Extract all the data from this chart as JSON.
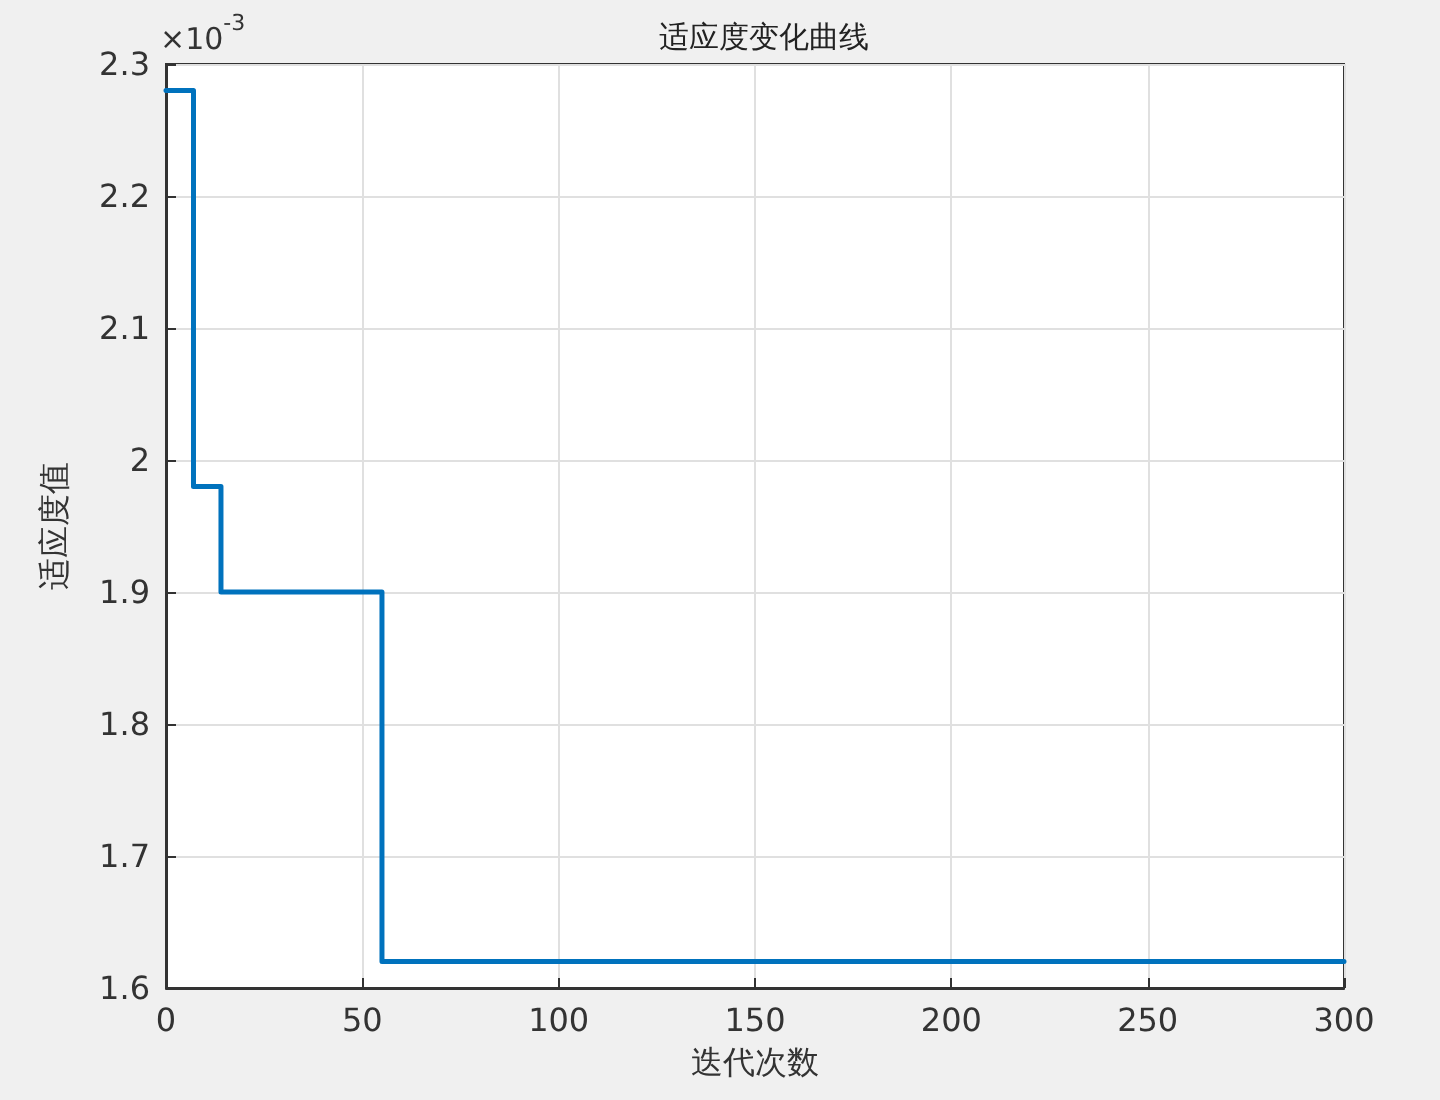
{
  "chart_data": {
    "type": "step",
    "title": "适应度变化曲线",
    "xlabel": "迭代次数",
    "ylabel": "适应度值",
    "annotations": [
      "×10$^{-3}$"
    ],
    "x": [
      0,
      7,
      14,
      55,
      300
    ],
    "series": [
      {
        "color": "#0072bd",
        "values": [
          2.28,
          1.98,
          1.9,
          1.62,
          1.62
        ]
      }
    ],
    "xlim": [
      0,
      300
    ],
    "xticks": [
      0,
      50,
      100,
      150,
      200,
      250,
      300
    ],
    "ylim": [
      1.6,
      2.3
    ],
    "yticks": [
      1.6,
      1.7,
      1.8,
      1.9,
      2,
      2.1,
      2.2,
      2.3
    ],
    "grid": true,
    "line_style": "solid",
    "marker": "none"
  }
}
